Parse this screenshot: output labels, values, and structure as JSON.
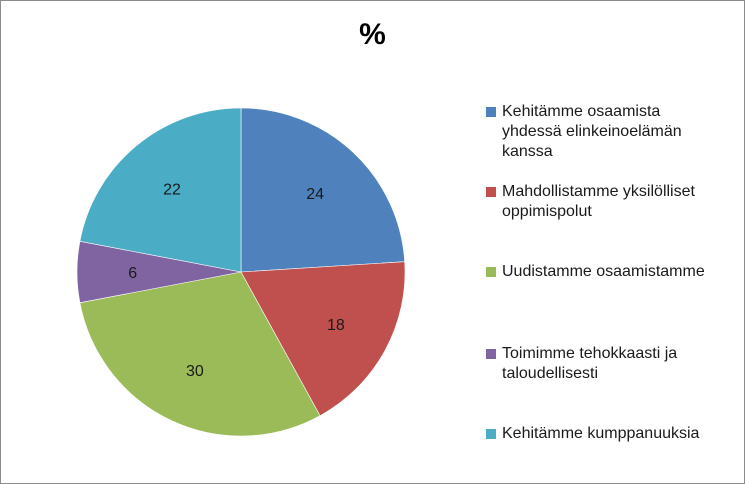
{
  "chart_data": {
    "type": "pie",
    "title": "%",
    "categories": [
      "Kehitämme osaamista yhdessä elinkeinoelämän kanssa",
      "Mahdollistamme yksilölliset oppimispolut",
      "Uudistamme osaamistamme",
      "Toimimme tehokkaasti ja taloudellisesti",
      "Kehitämme kumppanuuksia"
    ],
    "values": [
      24,
      18,
      30,
      6,
      22
    ],
    "value_labels": [
      "24",
      "18",
      "30",
      "6",
      "22"
    ],
    "colors": [
      "#4f81bd",
      "#c0504d",
      "#9bbb59",
      "#8064a2",
      "#4bacc6"
    ],
    "legend_position": "right",
    "legend_lines": [
      "Kehitämme osaamista\nyhdessä elinkeinoelämän\nkanssa",
      "Mahdollistamme yksilölliset\noppimispolut",
      "Uudistamme osaamistamme",
      "Toimimme tehokkaasti ja\ntaloudellisesti",
      "Kehitämme kumppanuuksia"
    ]
  }
}
